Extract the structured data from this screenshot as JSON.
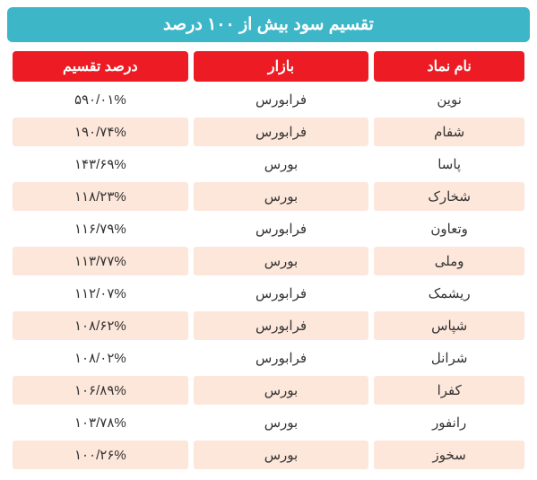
{
  "title": "تقسیم سود بیش از ۱۰۰ درصد",
  "columns": {
    "symbol": "نام نماد",
    "market": "بازار",
    "percent": "درصد تقسیم"
  },
  "rows": [
    {
      "symbol": "نوین",
      "market": "فرابورس",
      "percent": "۵۹۰/۰۱%"
    },
    {
      "symbol": "شفام",
      "market": "فرابورس",
      "percent": "۱۹۰/۷۴%"
    },
    {
      "symbol": "پاسا",
      "market": "بورس",
      "percent": "۱۴۳/۶۹%"
    },
    {
      "symbol": "شخارک",
      "market": "بورس",
      "percent": "۱۱۸/۲۳%"
    },
    {
      "symbol": "وتعاون",
      "market": "فرابورس",
      "percent": "۱۱۶/۷۹%"
    },
    {
      "symbol": "وملی",
      "market": "بورس",
      "percent": "۱۱۳/۷۷%"
    },
    {
      "symbol": "ریشمک",
      "market": "فرابورس",
      "percent": "۱۱۲/۰۷%"
    },
    {
      "symbol": "شپاس",
      "market": "فرابورس",
      "percent": "۱۰۸/۶۲%"
    },
    {
      "symbol": "شرانل",
      "market": "فرابورس",
      "percent": "۱۰۸/۰۲%"
    },
    {
      "symbol": "کفرا",
      "market": "بورس",
      "percent": "۱۰۶/۸۹%"
    },
    {
      "symbol": "رانفور",
      "market": "بورس",
      "percent": "۱۰۳/۷۸%"
    },
    {
      "symbol": "سخوز",
      "market": "بورس",
      "percent": "۱۰۰/۲۶%"
    }
  ],
  "styling": {
    "title_bg": "#3db6c8",
    "title_color": "#ffffff",
    "header_bg": "#ed1c24",
    "header_color": "#ffffff",
    "row_odd_bg": "#ffffff",
    "row_even_bg": "#fde6da",
    "text_color": "#333333",
    "title_fontsize": 19,
    "header_fontsize": 16,
    "cell_fontsize": 15
  }
}
